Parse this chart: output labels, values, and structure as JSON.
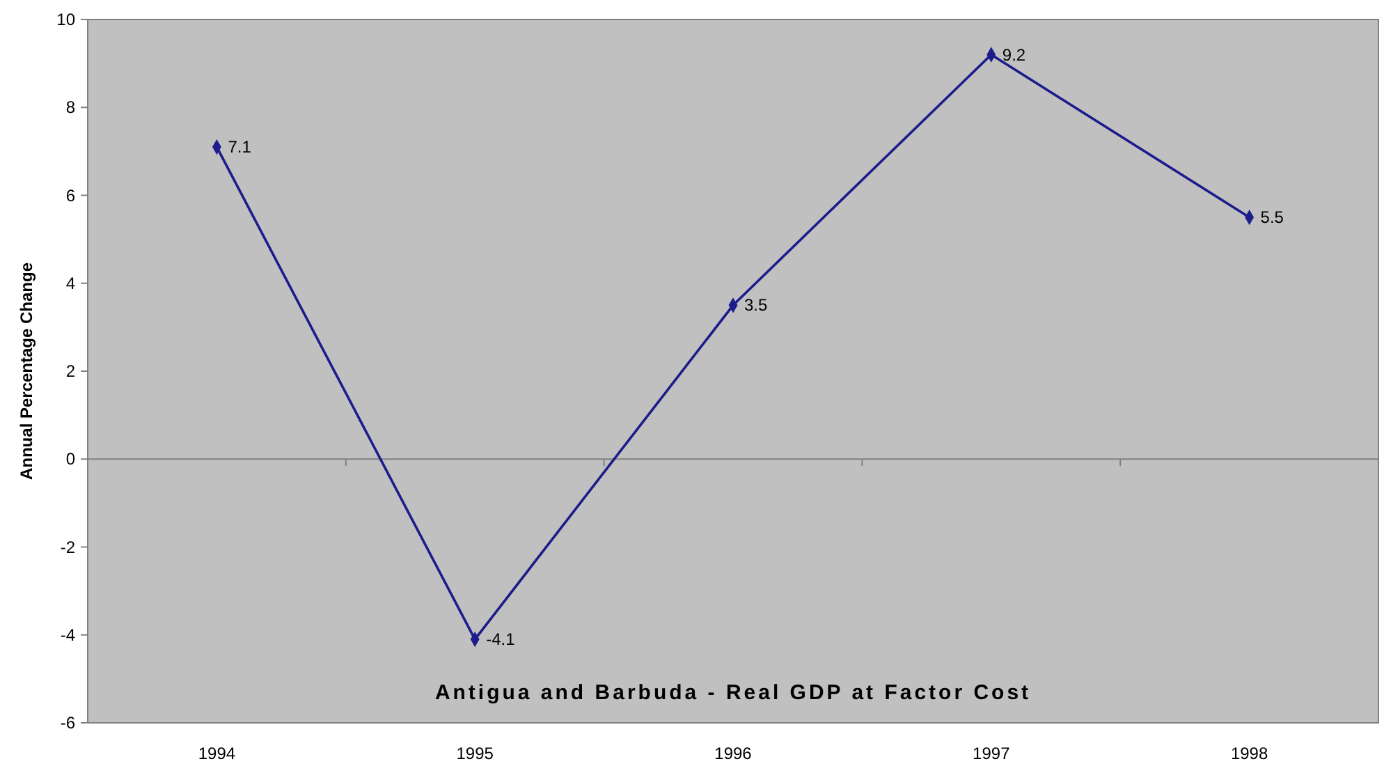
{
  "chart_data": {
    "type": "line",
    "title": "Antigua and Barbuda - Real GDP at Factor Cost",
    "ylabel": "Annual Percentage Change",
    "categories": [
      "1994",
      "1995",
      "1996",
      "1997",
      "1998"
    ],
    "series": [
      {
        "color": "#1c1c8c",
        "values": [
          7.1,
          -4.1,
          3.5,
          9.2,
          5.5
        ]
      }
    ],
    "ylim": [
      -6,
      10
    ],
    "yticks": [
      -6,
      -4,
      -2,
      0,
      2,
      4,
      6,
      8,
      10
    ],
    "marker": "diamond",
    "line_style": "solid",
    "data_labels": true
  }
}
